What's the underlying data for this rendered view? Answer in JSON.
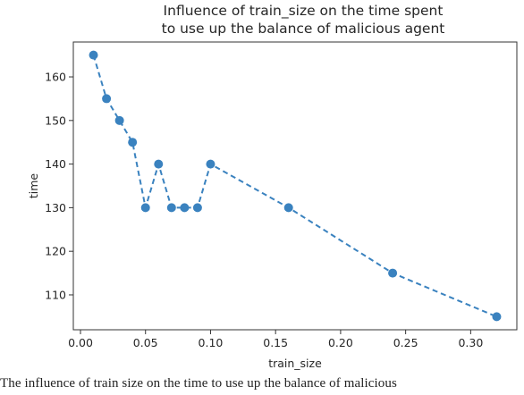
{
  "chart_data": {
    "type": "line",
    "title_lines": [
      "Influence of train_size on the time spent",
      "to use up the balance of malicious agent"
    ],
    "xlabel": "train_size",
    "ylabel": "time",
    "x": [
      0.01,
      0.02,
      0.03,
      0.04,
      0.05,
      0.06,
      0.07,
      0.08,
      0.09,
      0.1,
      0.16,
      0.24,
      0.32
    ],
    "y": [
      165,
      155,
      150,
      145,
      130,
      140,
      130,
      130,
      130,
      140,
      130,
      115,
      105
    ],
    "xlim": [
      -0.0055,
      0.3355
    ],
    "ylim": [
      102,
      168
    ],
    "xticks": [
      0.0,
      0.05,
      0.1,
      0.15,
      0.2,
      0.25,
      0.3
    ],
    "xtick_labels": [
      "0.00",
      "0.05",
      "0.10",
      "0.15",
      "0.20",
      "0.25",
      "0.30"
    ],
    "yticks": [
      110,
      120,
      130,
      140,
      150,
      160
    ],
    "ytick_labels": [
      "110",
      "120",
      "130",
      "140",
      "150",
      "160"
    ],
    "line_style": "dashed",
    "marker": "circle",
    "color": "#3a82bf",
    "grid": false,
    "legend": "none"
  },
  "caption": "The influence of train size on the time to use up the balance of malicious"
}
